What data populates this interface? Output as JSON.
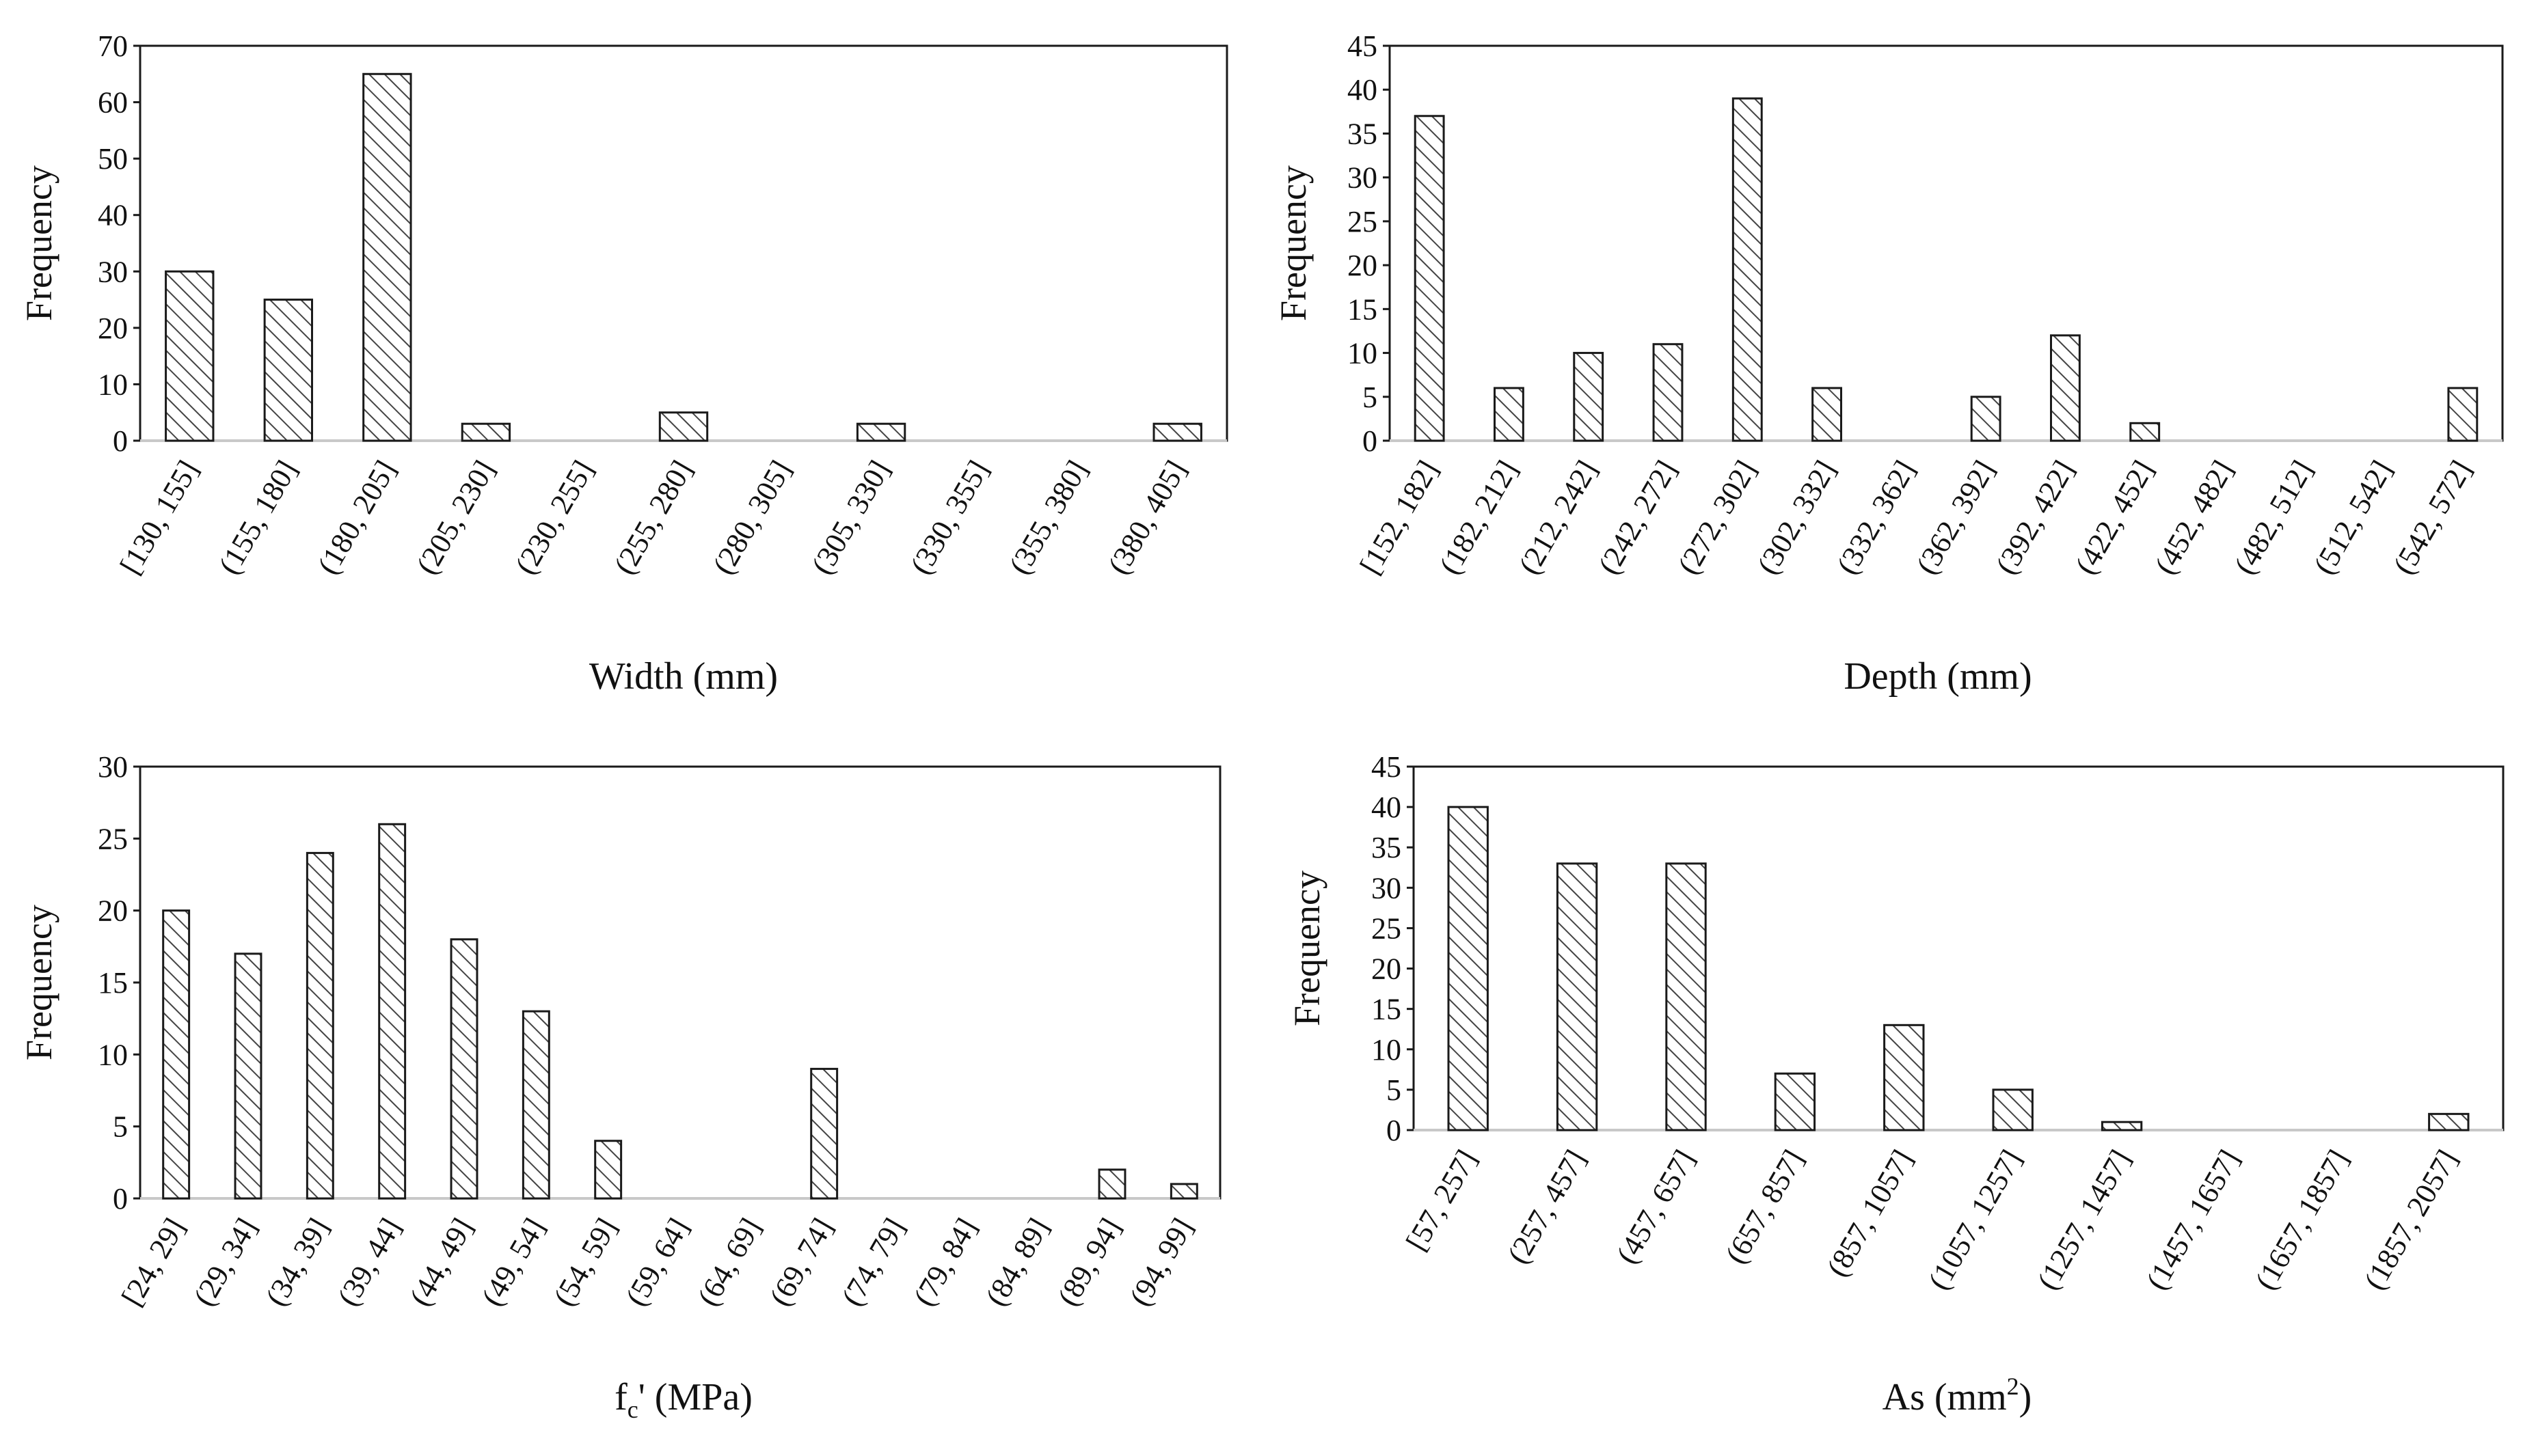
{
  "chart_data": [
    {
      "type": "bar",
      "title": "",
      "xlabel": "Width (mm)",
      "ylabel": "Frequency",
      "ylim": [
        0,
        70
      ],
      "yticks": [
        0,
        10,
        20,
        30,
        40,
        50,
        60,
        70
      ],
      "categories": [
        "[130, 155]",
        "(155, 180]",
        "(180, 205]",
        "(205, 230]",
        "(230, 255]",
        "(255, 280]",
        "(280, 305]",
        "(305, 330]",
        "(330, 355]",
        "(355, 380]",
        "(380, 405]"
      ],
      "values": [
        30,
        25,
        65,
        3,
        0,
        5,
        0,
        3,
        0,
        0,
        3
      ]
    },
    {
      "type": "bar",
      "title": "",
      "xlabel": "Depth (mm)",
      "ylabel": "Frequency",
      "ylim": [
        0,
        45
      ],
      "yticks": [
        0,
        5,
        10,
        15,
        20,
        25,
        30,
        35,
        40,
        45
      ],
      "categories": [
        "[152, 182]",
        "(182, 212]",
        "(212, 242]",
        "(242, 272]",
        "(272, 302]",
        "(302, 332]",
        "(332, 362]",
        "(362, 392]",
        "(392, 422]",
        "(422, 452]",
        "(452, 482]",
        "(482, 512]",
        "(512, 542]",
        "(542, 572]"
      ],
      "values": [
        37,
        6,
        10,
        11,
        39,
        6,
        0,
        5,
        12,
        2,
        0,
        0,
        0,
        6
      ]
    },
    {
      "type": "bar",
      "title": "",
      "xlabel": "fc' (MPa)",
      "xlabel_main": "f",
      "xlabel_sub": "c",
      "xlabel_rest": "' (MPa)",
      "ylabel": "Frequency",
      "ylim": [
        0,
        30
      ],
      "yticks": [
        0,
        5,
        10,
        15,
        20,
        25,
        30
      ],
      "categories": [
        "[24, 29]",
        "(29, 34]",
        "(34, 39]",
        "(39, 44]",
        "(44, 49]",
        "(49, 54]",
        "(54, 59]",
        "(59, 64]",
        "(64, 69]",
        "(69, 74]",
        "(74, 79]",
        "(79, 84]",
        "(84, 89]",
        "(89, 94]",
        "(94, 99]"
      ],
      "values": [
        20,
        17,
        24,
        26,
        18,
        13,
        4,
        0,
        0,
        9,
        0,
        0,
        0,
        2,
        1
      ]
    },
    {
      "type": "bar",
      "title": "",
      "xlabel": "As (mm2)",
      "xlabel_main": "As (mm",
      "xlabel_sup": "2",
      "xlabel_rest": ")",
      "ylabel": "Frequency",
      "ylim": [
        0,
        45
      ],
      "yticks": [
        0,
        5,
        10,
        15,
        20,
        25,
        30,
        35,
        40,
        45
      ],
      "categories": [
        "[57, 257]",
        "(257, 457]",
        "(457, 657]",
        "(657, 857]",
        "(857, 1057]",
        "(1057, 1257]",
        "(1257, 1457]",
        "(1457, 1657]",
        "(1657, 1857]",
        "(1857, 2057]"
      ],
      "values": [
        40,
        33,
        33,
        7,
        13,
        5,
        1,
        0,
        0,
        2
      ]
    }
  ],
  "colors": {
    "bar_fill": "#ffffff",
    "hatch": "#444444",
    "axis": "#1a1a1a",
    "baseline": "#c8c8c8"
  }
}
